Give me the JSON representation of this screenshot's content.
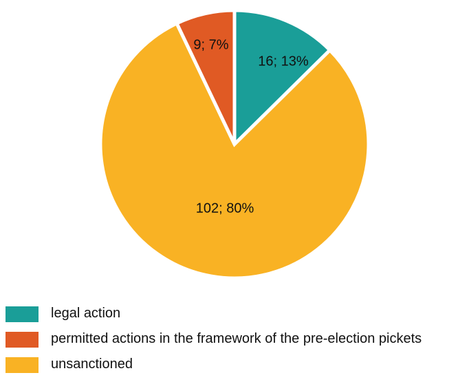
{
  "chart_data": {
    "type": "pie",
    "series": [
      {
        "name": "legal action",
        "value": 16,
        "label": "16; 13%",
        "color": "#1a9e98"
      },
      {
        "name": "permitted actions in the framework of the pre-election pickets",
        "value": 9,
        "label": "9; 7%",
        "color": "#e05a24"
      },
      {
        "name": "unsanctioned",
        "value": 102,
        "label": "102; 80%",
        "color": "#f9b224"
      }
    ],
    "legend_position": "bottom-left"
  }
}
